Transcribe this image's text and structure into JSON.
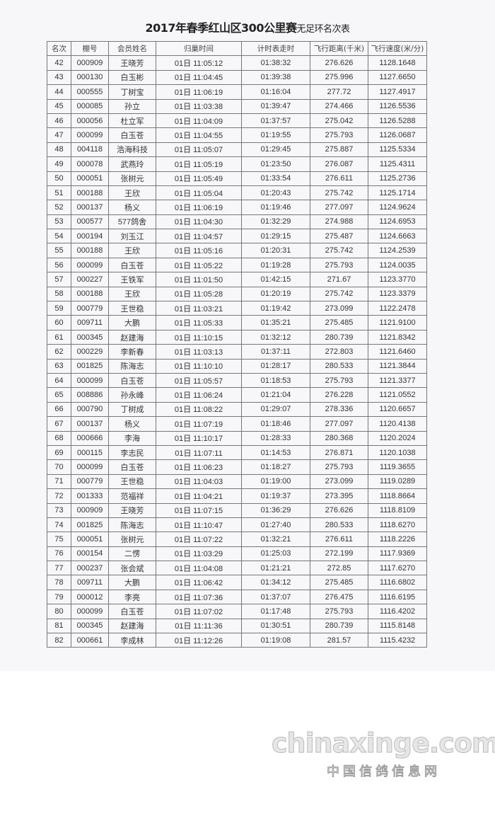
{
  "document": {
    "title_main": "2017年春季红山区300公里赛",
    "title_suffix": "无足环名次表",
    "headers": [
      "名次",
      "棚号",
      "会员姓名",
      "归巢时间",
      "计时表走时",
      "飞行距离(千米)",
      "飞行速度(米/分)"
    ],
    "rows": [
      [
        "42",
        "000909",
        "王晓芳",
        "01日 11:05:12",
        "01:38:32",
        "276.626",
        "1128.1648"
      ],
      [
        "43",
        "000130",
        "白玉彬",
        "01日 11:04:45",
        "01:39:38",
        "275.996",
        "1127.6650"
      ],
      [
        "44",
        "000555",
        "丁树宝",
        "01日 11:06:19",
        "01:16:04",
        "277.72",
        "1127.4917"
      ],
      [
        "45",
        "000085",
        "孙立",
        "01日 11:03:38",
        "01:39:47",
        "274.466",
        "1126.5536"
      ],
      [
        "46",
        "000056",
        "杜立军",
        "01日 11:04:09",
        "01:37:57",
        "275.042",
        "1126.5288"
      ],
      [
        "47",
        "000099",
        "白玉苍",
        "01日 11:04:55",
        "01:19:55",
        "275.793",
        "1126.0687"
      ],
      [
        "48",
        "004118",
        "浩海科技",
        "01日 11:05:07",
        "01:29:45",
        "275.887",
        "1125.5334"
      ],
      [
        "49",
        "000078",
        "武燕玲",
        "01日 11:05:19",
        "01:23:50",
        "276.087",
        "1125.4311"
      ],
      [
        "50",
        "000051",
        "张树元",
        "01日 11:05:49",
        "01:33:54",
        "276.611",
        "1125.2736"
      ],
      [
        "51",
        "000188",
        "王欣",
        "01日 11:05:04",
        "01:20:43",
        "275.742",
        "1125.1714"
      ],
      [
        "52",
        "000137",
        "杨义",
        "01日 11:06:19",
        "01:19:46",
        "277.097",
        "1124.9624"
      ],
      [
        "53",
        "000577",
        "577鸽舍",
        "01日 11:04:30",
        "01:32:29",
        "274.988",
        "1124.6953"
      ],
      [
        "54",
        "000194",
        "刘玉江",
        "01日 11:04:57",
        "01:29:15",
        "275.487",
        "1124.6663"
      ],
      [
        "55",
        "000188",
        "王欣",
        "01日 11:05:16",
        "01:20:31",
        "275.742",
        "1124.2539"
      ],
      [
        "56",
        "000099",
        "白玉苍",
        "01日 11:05:22",
        "01:19:28",
        "275.793",
        "1124.0035"
      ],
      [
        "57",
        "000227",
        "王铁军",
        "01日 11:01:50",
        "01:42:15",
        "271.67",
        "1123.3770"
      ],
      [
        "58",
        "000188",
        "王欣",
        "01日 11:05:28",
        "01:20:19",
        "275.742",
        "1123.3379"
      ],
      [
        "59",
        "000779",
        "王世稳",
        "01日 11:03:21",
        "01:19:42",
        "273.099",
        "1122.2478"
      ],
      [
        "60",
        "009711",
        "大鹏",
        "01日 11:05:33",
        "01:35:21",
        "275.485",
        "1121.9100"
      ],
      [
        "61",
        "000345",
        "赵建海",
        "01日 11:10:15",
        "01:32:12",
        "280.739",
        "1121.8342"
      ],
      [
        "62",
        "000229",
        "李新春",
        "01日 11:03:13",
        "01:37:11",
        "272.803",
        "1121.6460"
      ],
      [
        "63",
        "001825",
        "陈海志",
        "01日 11:10:10",
        "01:28:17",
        "280.533",
        "1121.3844"
      ],
      [
        "64",
        "000099",
        "白玉苍",
        "01日 11:05:57",
        "01:18:53",
        "275.793",
        "1121.3377"
      ],
      [
        "65",
        "008886",
        "孙永峰",
        "01日 11:06:24",
        "01:21:04",
        "276.228",
        "1121.0552"
      ],
      [
        "66",
        "000790",
        "丁树成",
        "01日 11:08:22",
        "01:29:07",
        "278.336",
        "1120.6657"
      ],
      [
        "67",
        "000137",
        "杨义",
        "01日 11:07:19",
        "01:18:46",
        "277.097",
        "1120.4138"
      ],
      [
        "68",
        "000666",
        "李海",
        "01日 11:10:17",
        "01:28:33",
        "280.368",
        "1120.2024"
      ],
      [
        "69",
        "000115",
        "李志民",
        "01日 11:07:11",
        "01:14:53",
        "276.871",
        "1120.1038"
      ],
      [
        "70",
        "000099",
        "白玉苍",
        "01日 11:06:23",
        "01:18:27",
        "275.793",
        "1119.3655"
      ],
      [
        "71",
        "000779",
        "王世稳",
        "01日 11:04:03",
        "01:19:00",
        "273.099",
        "1119.0289"
      ],
      [
        "72",
        "001333",
        "范福祥",
        "01日 11:04:21",
        "01:19:37",
        "273.395",
        "1118.8664"
      ],
      [
        "73",
        "000909",
        "王晓芳",
        "01日 11:07:15",
        "01:36:29",
        "276.626",
        "1118.8109"
      ],
      [
        "74",
        "001825",
        "陈海志",
        "01日 11:10:47",
        "01:27:40",
        "280.533",
        "1118.6270"
      ],
      [
        "75",
        "000051",
        "张树元",
        "01日 11:07:22",
        "01:32:21",
        "276.611",
        "1118.2226"
      ],
      [
        "76",
        "000154",
        "二愣",
        "01日 11:03:29",
        "01:25:03",
        "272.199",
        "1117.9369"
      ],
      [
        "77",
        "000237",
        "张会斌",
        "01日 11:04:08",
        "01:21:21",
        "272.85",
        "1117.6270"
      ],
      [
        "78",
        "009711",
        "大鹏",
        "01日 11:06:42",
        "01:34:12",
        "275.485",
        "1116.6802"
      ],
      [
        "79",
        "000012",
        "李亮",
        "01日 11:07:36",
        "01:37:07",
        "276.475",
        "1116.6195"
      ],
      [
        "80",
        "000099",
        "白玉苍",
        "01日 11:07:02",
        "01:17:48",
        "275.793",
        "1116.4202"
      ],
      [
        "81",
        "000345",
        "赵建海",
        "01日 11:11:36",
        "01:30:51",
        "280.739",
        "1115.8148"
      ],
      [
        "82",
        "000661",
        "李成林",
        "01日 11:12:26",
        "01:19:08",
        "281.57",
        "1115.4232"
      ]
    ]
  },
  "watermark": {
    "domain": "chinaxinge.com",
    "site_name": "中国信鸽信息网"
  }
}
